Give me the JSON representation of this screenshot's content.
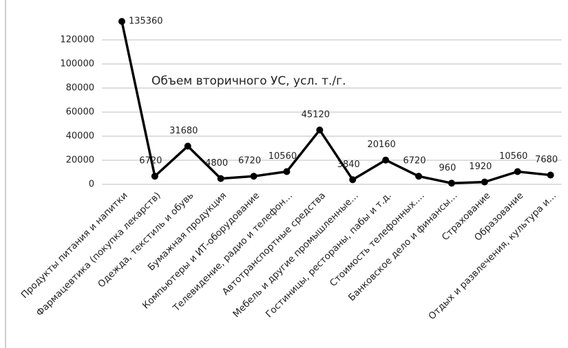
{
  "chart_data": {
    "type": "line",
    "title": "Объем вторичного УС, усл. т./г.",
    "categories": [
      "Продукты питания и напитки",
      "Фармацевтика (покупка лекарств)",
      "Одежда, текстиль и обувь",
      "Бумажная продукция",
      "Компьютеры и ИТ-оборудование",
      "Телевидение, радио и телефон…",
      "Автотранспортные средства",
      "Мебель и другие промышленные…",
      "Гостиницы, рестораны, пабы и т.д.",
      "Стоимость телефонных….",
      "Банковское дело и финансы…",
      "Страхование",
      "Образование",
      "Отдых и развлечения, культура и…"
    ],
    "series": [
      {
        "name": "Объем вторичного УС, усл. т./г.",
        "color": "#000000",
        "values": [
          135360,
          6720,
          31680,
          4800,
          6720,
          10560,
          45120,
          3840,
          20160,
          6720,
          960,
          1920,
          10560,
          7680
        ]
      }
    ],
    "ylim": [
      0,
      140000
    ],
    "yticks": [
      0,
      20000,
      40000,
      60000,
      80000,
      100000,
      120000
    ],
    "grid": true
  }
}
